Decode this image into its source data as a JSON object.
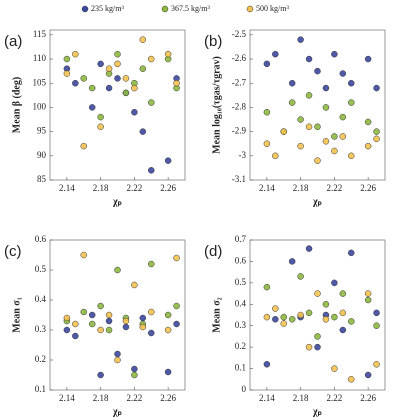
{
  "chart_data": [
    {
      "type": "scatter",
      "label": "(a)",
      "ylabel": "Mean β (deg)",
      "xlabel": "χₚ",
      "xlim": [
        2.12,
        2.28
      ],
      "xticks": [
        2.14,
        2.18,
        2.22,
        2.26
      ],
      "ylim": [
        85,
        116
      ],
      "yticks": [
        85,
        90,
        95,
        100,
        105,
        110,
        115
      ],
      "series": [
        {
          "name": "235 kg/m³",
          "color": "#3b479e",
          "x": [
            2.14,
            2.15,
            2.17,
            2.18,
            2.19,
            2.2,
            2.21,
            2.22,
            2.23,
            2.24,
            2.26,
            2.27
          ],
          "values": [
            108,
            105,
            100,
            109,
            104,
            106,
            103,
            99,
            95,
            87,
            89,
            106
          ]
        },
        {
          "name": "367.5 kg/m³",
          "color": "#8cb83e",
          "x": [
            2.14,
            2.16,
            2.17,
            2.18,
            2.19,
            2.2,
            2.21,
            2.22,
            2.23,
            2.24,
            2.26,
            2.27
          ],
          "values": [
            110,
            106,
            104,
            98,
            107,
            111,
            103,
            105,
            108,
            101,
            110,
            104
          ]
        },
        {
          "name": "500 kg/m³",
          "color": "#f3c150",
          "x": [
            2.14,
            2.15,
            2.16,
            2.18,
            2.19,
            2.2,
            2.21,
            2.22,
            2.23,
            2.24,
            2.26,
            2.27
          ],
          "values": [
            107,
            111,
            92,
            96,
            108,
            109,
            106,
            104,
            114,
            110,
            111,
            105
          ]
        }
      ]
    },
    {
      "type": "scatter",
      "label": "(b)",
      "ylabel": "Mean log₁₀(τgas/τgrav)",
      "xlabel": "χₚ",
      "xlim": [
        2.12,
        2.28
      ],
      "xticks": [
        2.14,
        2.18,
        2.22,
        2.26
      ],
      "ylim": [
        -3.1,
        -2.48
      ],
      "yticks": [
        -3.1,
        -3,
        -2.9,
        -2.8,
        -2.7,
        -2.6,
        -2.5
      ],
      "series": [
        {
          "color": "#3b479e",
          "x": [
            2.14,
            2.15,
            2.17,
            2.18,
            2.19,
            2.2,
            2.21,
            2.22,
            2.23,
            2.24,
            2.26,
            2.27
          ],
          "values": [
            -2.62,
            -2.58,
            -2.7,
            -2.52,
            -2.6,
            -2.65,
            -2.72,
            -2.58,
            -2.66,
            -2.7,
            -2.6,
            -2.72
          ]
        },
        {
          "color": "#8cb83e",
          "x": [
            2.14,
            2.16,
            2.17,
            2.18,
            2.19,
            2.2,
            2.21,
            2.22,
            2.23,
            2.24,
            2.26,
            2.27
          ],
          "values": [
            -2.82,
            -2.9,
            -2.78,
            -2.85,
            -2.75,
            -2.88,
            -2.8,
            -2.92,
            -2.84,
            -2.78,
            -2.86,
            -2.9
          ]
        },
        {
          "color": "#f3c150",
          "x": [
            2.14,
            2.15,
            2.16,
            2.18,
            2.19,
            2.2,
            2.21,
            2.22,
            2.23,
            2.24,
            2.26,
            2.27
          ],
          "values": [
            -2.95,
            -3,
            -2.9,
            -2.96,
            -2.88,
            -3.02,
            -2.94,
            -2.98,
            -2.92,
            -3,
            -2.96,
            -2.93
          ]
        }
      ]
    },
    {
      "type": "scatter",
      "label": "(c)",
      "ylabel": "Mean σ₁",
      "xlabel": "χₚ",
      "xlim": [
        2.12,
        2.28
      ],
      "xticks": [
        2.14,
        2.18,
        2.22,
        2.26
      ],
      "ylim": [
        0.1,
        0.6
      ],
      "yticks": [
        0.1,
        0.2,
        0.3,
        0.4,
        0.5,
        0.6
      ],
      "series": [
        {
          "color": "#3b479e",
          "x": [
            2.14,
            2.15,
            2.17,
            2.18,
            2.19,
            2.2,
            2.21,
            2.22,
            2.23,
            2.24,
            2.26,
            2.27
          ],
          "values": [
            0.3,
            0.28,
            0.35,
            0.15,
            0.33,
            0.22,
            0.31,
            0.17,
            0.34,
            0.29,
            0.16,
            0.32
          ]
        },
        {
          "color": "#8cb83e",
          "x": [
            2.14,
            2.16,
            2.17,
            2.18,
            2.19,
            2.2,
            2.21,
            2.22,
            2.23,
            2.24,
            2.26,
            2.27
          ],
          "values": [
            0.33,
            0.36,
            0.32,
            0.38,
            0.3,
            0.5,
            0.34,
            0.15,
            0.32,
            0.52,
            0.35,
            0.38
          ]
        },
        {
          "color": "#f3c150",
          "x": [
            2.14,
            2.15,
            2.16,
            2.18,
            2.19,
            2.2,
            2.21,
            2.22,
            2.23,
            2.24,
            2.26,
            2.27
          ],
          "values": [
            0.34,
            0.32,
            0.55,
            0.3,
            0.35,
            0.2,
            0.33,
            0.45,
            0.31,
            0.36,
            0.3,
            0.54
          ]
        }
      ]
    },
    {
      "type": "scatter",
      "label": "(d)",
      "ylabel": "Mean σ₂",
      "xlabel": "χₚ",
      "xlim": [
        2.12,
        2.28
      ],
      "xticks": [
        2.14,
        2.18,
        2.22,
        2.26
      ],
      "ylim": [
        0,
        0.7
      ],
      "yticks": [
        0,
        0.1,
        0.2,
        0.3,
        0.4,
        0.5,
        0.6,
        0.7
      ],
      "series": [
        {
          "color": "#3b479e",
          "x": [
            2.14,
            2.15,
            2.17,
            2.18,
            2.19,
            2.2,
            2.21,
            2.22,
            2.23,
            2.24,
            2.26,
            2.27
          ],
          "values": [
            0.12,
            0.33,
            0.6,
            0.34,
            0.66,
            0.2,
            0.35,
            0.5,
            0.28,
            0.64,
            0.07,
            0.36
          ]
        },
        {
          "color": "#8cb83e",
          "x": [
            2.14,
            2.16,
            2.17,
            2.18,
            2.19,
            2.2,
            2.21,
            2.22,
            2.23,
            2.24,
            2.26,
            2.27
          ],
          "values": [
            0.48,
            0.34,
            0.33,
            0.53,
            0.36,
            0.25,
            0.4,
            0.34,
            0.45,
            0.32,
            0.42,
            0.3
          ]
        },
        {
          "color": "#f3c150",
          "x": [
            2.14,
            2.15,
            2.16,
            2.18,
            2.19,
            2.2,
            2.21,
            2.22,
            2.23,
            2.24,
            2.26,
            2.27
          ],
          "values": [
            0.34,
            0.38,
            0.31,
            0.35,
            0.2,
            0.45,
            0.33,
            0.1,
            0.36,
            0.05,
            0.45,
            0.12
          ]
        }
      ]
    }
  ]
}
